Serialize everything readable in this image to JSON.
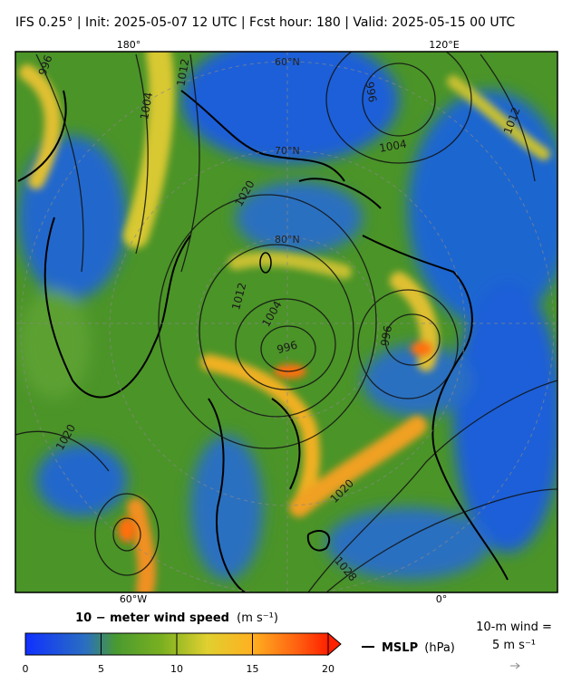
{
  "header": {
    "title": "IFS 0.25°  |  Init: 2025-05-07 12 UTC  |  Fcst hour: 180  |  Valid: 2025-05-15 00 UTC"
  },
  "map": {
    "lon_labels_top": [
      "180°",
      "120°E"
    ],
    "lon_labels_bottom": [
      "60°W",
      "0°"
    ],
    "lat_labels": [
      "60°N",
      "70°N",
      "80°N"
    ],
    "contour_labels": [
      996,
      1012,
      1004,
      996,
      1004,
      1012,
      1020,
      1012,
      1004,
      996,
      996,
      1020,
      1020,
      1028
    ]
  },
  "colorbar": {
    "label": "10 − meter wind speed",
    "unit": "(m s⁻¹)",
    "lim": [
      0,
      20
    ],
    "ticks": [
      0,
      5,
      10,
      15,
      20
    ]
  },
  "legend": {
    "mslp_name": "MSLP",
    "mslp_unit": "(hPa)",
    "wind_key": "10-m wind =",
    "wind_key_value": "5 m s⁻¹"
  }
}
